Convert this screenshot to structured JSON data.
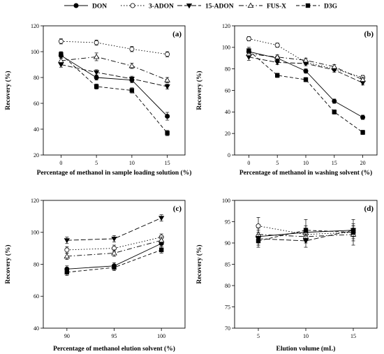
{
  "legend": [
    {
      "name": "DON",
      "marker": "filled-circle",
      "dash": "solid",
      "fill": "#000000"
    },
    {
      "name": "3-ADON",
      "marker": "open-circle",
      "dash": "dot",
      "fill": "#ffffff"
    },
    {
      "name": "15-ADON",
      "marker": "filled-triangle-down",
      "dash": "longdash",
      "fill": "#000000"
    },
    {
      "name": "FUS-X",
      "marker": "open-triangle-up",
      "dash": "dashdot",
      "fill": "#ffffff"
    },
    {
      "name": "D3G",
      "marker": "filled-square",
      "dash": "dash",
      "fill": "#000000"
    }
  ],
  "chart_data": [
    {
      "type": "line",
      "panel_label": "(a)",
      "xlabel": "Percentage of methanol in sample loading solution (%)",
      "ylabel": "Recovery (%)",
      "x": [
        0,
        5,
        10,
        15
      ],
      "xlim": [
        -2.5,
        17.5
      ],
      "ylim": [
        20,
        120
      ],
      "xticks": [
        0,
        5,
        10,
        15
      ],
      "yticks": [
        20,
        40,
        60,
        80,
        100,
        120
      ],
      "series": [
        {
          "name": "DON",
          "values": [
            97,
            80,
            78,
            50
          ],
          "errors": [
            2,
            2,
            2,
            3
          ]
        },
        {
          "name": "3-ADON",
          "values": [
            108,
            107,
            102,
            98
          ],
          "errors": [
            2,
            2,
            2,
            2
          ]
        },
        {
          "name": "15-ADON",
          "values": [
            90,
            84,
            79,
            73
          ],
          "errors": [
            2,
            2,
            2,
            2
          ]
        },
        {
          "name": "FUS-X",
          "values": [
            93,
            96,
            89,
            78
          ],
          "errors": [
            2,
            3,
            2,
            2
          ]
        },
        {
          "name": "D3G",
          "values": [
            98,
            73,
            70,
            37
          ],
          "errors": [
            2,
            2,
            2,
            2
          ]
        }
      ]
    },
    {
      "type": "line",
      "panel_label": "(b)",
      "xlabel": "Percentage of methanol in washing solvent (%)",
      "ylabel": "Recovery (%)",
      "x": [
        0,
        5,
        10,
        15,
        20
      ],
      "xlim": [
        -2.5,
        22.5
      ],
      "ylim": [
        0,
        120
      ],
      "xticks": [
        0,
        5,
        10,
        15,
        20
      ],
      "yticks": [
        0,
        20,
        40,
        60,
        80,
        100,
        120
      ],
      "series": [
        {
          "name": "DON",
          "values": [
            96,
            90,
            78,
            50,
            35
          ],
          "errors": [
            2,
            2,
            2,
            2,
            2
          ]
        },
        {
          "name": "3-ADON",
          "values": [
            108,
            102,
            86,
            80,
            72
          ],
          "errors": [
            2,
            2,
            2,
            2,
            2
          ]
        },
        {
          "name": "15-ADON",
          "values": [
            91,
            86,
            85,
            79,
            67
          ],
          "errors": [
            3,
            2,
            2,
            2,
            2
          ]
        },
        {
          "name": "FUS-X",
          "values": [
            94,
            91,
            88,
            82,
            70
          ],
          "errors": [
            2,
            2,
            2,
            2,
            2
          ]
        },
        {
          "name": "D3G",
          "values": [
            97,
            74,
            70,
            40,
            21
          ],
          "errors": [
            3,
            2,
            2,
            2,
            2
          ]
        }
      ]
    },
    {
      "type": "line",
      "panel_label": "(c)",
      "xlabel": "Percentage of methanol elution solvent (%)",
      "ylabel": "Recovery (%)",
      "x": [
        90,
        95,
        100
      ],
      "xlim": [
        87.5,
        102.5
      ],
      "ylim": [
        40,
        120
      ],
      "xticks": [
        90,
        95,
        100
      ],
      "yticks": [
        40,
        60,
        80,
        100,
        120
      ],
      "series": [
        {
          "name": "DON",
          "values": [
            77,
            79,
            93
          ],
          "errors": [
            2,
            2,
            2
          ]
        },
        {
          "name": "3-ADON",
          "values": [
            89,
            90,
            97
          ],
          "errors": [
            2,
            2,
            2
          ]
        },
        {
          "name": "15-ADON",
          "values": [
            95,
            96,
            109
          ],
          "errors": [
            2,
            2,
            2
          ]
        },
        {
          "name": "FUS-X",
          "values": [
            85,
            87,
            95
          ],
          "errors": [
            2,
            2,
            2
          ]
        },
        {
          "name": "D3G",
          "values": [
            75,
            78,
            89
          ],
          "errors": [
            2,
            2,
            2
          ]
        }
      ]
    },
    {
      "type": "line",
      "panel_label": "(d)",
      "xlabel": "Elution volume (mL)",
      "ylabel": "Recovery (%)",
      "x": [
        5,
        10,
        15
      ],
      "xlim": [
        2.5,
        17.5
      ],
      "ylim": [
        70,
        100
      ],
      "xticks": [
        5,
        10,
        15
      ],
      "yticks": [
        70,
        75,
        80,
        85,
        90,
        95,
        100
      ],
      "series": [
        {
          "name": "DON",
          "values": [
            91.5,
            92.5,
            93
          ],
          "errors": [
            1.5,
            1.5,
            1
          ]
        },
        {
          "name": "3-ADON",
          "values": [
            94,
            92,
            92.5
          ],
          "errors": [
            2,
            1.5,
            1.5
          ]
        },
        {
          "name": "15-ADON",
          "values": [
            91,
            90.5,
            93
          ],
          "errors": [
            1.5,
            1.5,
            1.5
          ]
        },
        {
          "name": "FUS-X",
          "values": [
            92,
            91.5,
            92
          ],
          "errors": [
            1.5,
            1.5,
            1.5
          ]
        },
        {
          "name": "D3G",
          "values": [
            90.5,
            93,
            92.5
          ],
          "errors": [
            1.5,
            2.5,
            3
          ]
        }
      ]
    }
  ]
}
